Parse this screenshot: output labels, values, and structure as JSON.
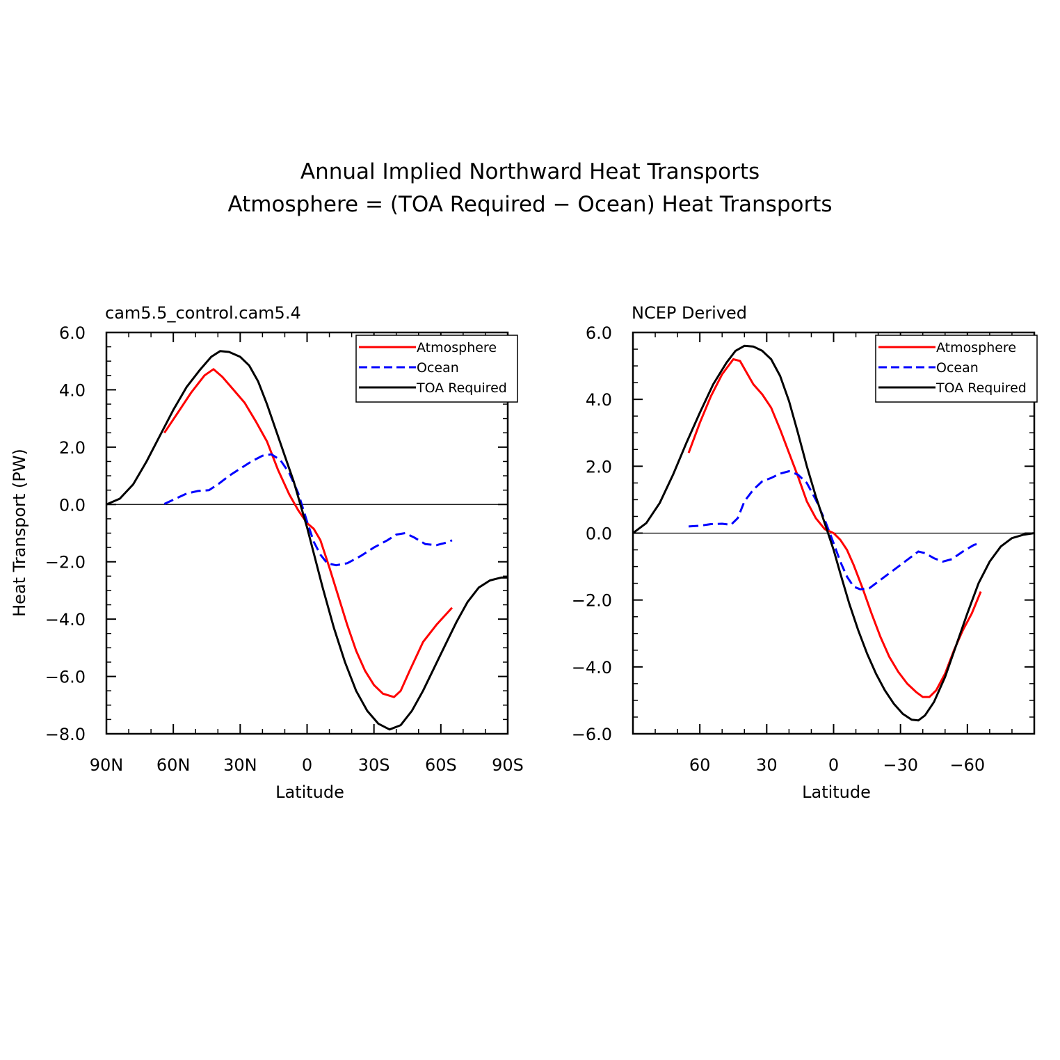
{
  "figure": {
    "title_line1": "Annual Implied Northward Heat Transports",
    "title_line2": "Atmosphere = (TOA Required − Ocean) Heat Transports"
  },
  "chart_data": [
    {
      "type": "line",
      "title": "cam5.5_control.cam5.4",
      "xlabel": "Latitude",
      "ylabel": "Heat Transport (PW)",
      "xlim": [
        90,
        -90
      ],
      "ylim": [
        -8,
        6
      ],
      "x_ticks": [
        90,
        60,
        30,
        0,
        -30,
        -60,
        -90
      ],
      "x_tick_labels": [
        "90N",
        "60N",
        "30N",
        "0",
        "30S",
        "60S",
        "90S"
      ],
      "y_ticks": [
        6,
        4,
        2,
        0,
        -2,
        -4,
        -6,
        -8
      ],
      "y_tick_labels": [
        "6.0",
        "4.0",
        "2.0",
        "0.0",
        "−2.0",
        "−4.0",
        "−6.0",
        "−8.0"
      ],
      "zero_line": true,
      "legend_position": "top-right",
      "series": [
        {
          "name": "Atmosphere",
          "color": "#ff0000",
          "dash": "solid",
          "points": [
            [
              64,
              2.5
            ],
            [
              58,
              3.2
            ],
            [
              52,
              3.9
            ],
            [
              46,
              4.5
            ],
            [
              42,
              4.72
            ],
            [
              38,
              4.45
            ],
            [
              33,
              4.0
            ],
            [
              28,
              3.55
            ],
            [
              23,
              2.9
            ],
            [
              18,
              2.2
            ],
            [
              13,
              1.2
            ],
            [
              8,
              0.35
            ],
            [
              4,
              -0.2
            ],
            [
              0,
              -0.65
            ],
            [
              -3,
              -0.85
            ],
            [
              -6,
              -1.25
            ],
            [
              -10,
              -2.2
            ],
            [
              -14,
              -3.2
            ],
            [
              -18,
              -4.2
            ],
            [
              -22,
              -5.1
            ],
            [
              -26,
              -5.8
            ],
            [
              -30,
              -6.3
            ],
            [
              -34,
              -6.6
            ],
            [
              -39,
              -6.72
            ],
            [
              -42,
              -6.5
            ],
            [
              -46,
              -5.8
            ],
            [
              -52,
              -4.8
            ],
            [
              -58,
              -4.2
            ],
            [
              -65,
              -3.6
            ]
          ]
        },
        {
          "name": "Ocean",
          "color": "#0000ff",
          "dash": "dashed",
          "points": [
            [
              64,
              0.02
            ],
            [
              59,
              0.2
            ],
            [
              54,
              0.38
            ],
            [
              49,
              0.47
            ],
            [
              44,
              0.5
            ],
            [
              40,
              0.7
            ],
            [
              35,
              1.0
            ],
            [
              30,
              1.25
            ],
            [
              25,
              1.5
            ],
            [
              20,
              1.7
            ],
            [
              16,
              1.75
            ],
            [
              12,
              1.55
            ],
            [
              8,
              1.1
            ],
            [
              4,
              0.4
            ],
            [
              0,
              -0.6
            ],
            [
              -3,
              -1.3
            ],
            [
              -6,
              -1.75
            ],
            [
              -9,
              -2.05
            ],
            [
              -13,
              -2.12
            ],
            [
              -18,
              -2.05
            ],
            [
              -24,
              -1.8
            ],
            [
              -30,
              -1.5
            ],
            [
              -36,
              -1.25
            ],
            [
              -40,
              -1.05
            ],
            [
              -44,
              -1.0
            ],
            [
              -48,
              -1.15
            ],
            [
              -53,
              -1.38
            ],
            [
              -58,
              -1.42
            ],
            [
              -63,
              -1.32
            ],
            [
              -65,
              -1.25
            ]
          ]
        },
        {
          "name": "TOA Required",
          "color": "#000000",
          "dash": "solid",
          "points": [
            [
              90,
              0.0
            ],
            [
              84,
              0.2
            ],
            [
              78,
              0.7
            ],
            [
              72,
              1.5
            ],
            [
              66,
              2.4
            ],
            [
              60,
              3.3
            ],
            [
              54,
              4.1
            ],
            [
              48,
              4.7
            ],
            [
              43,
              5.15
            ],
            [
              39,
              5.35
            ],
            [
              35,
              5.32
            ],
            [
              30,
              5.15
            ],
            [
              26,
              4.85
            ],
            [
              22,
              4.3
            ],
            [
              18,
              3.5
            ],
            [
              14,
              2.6
            ],
            [
              10,
              1.7
            ],
            [
              6,
              0.8
            ],
            [
              3,
              0.0
            ],
            [
              0,
              -0.8
            ],
            [
              -3,
              -1.7
            ],
            [
              -7,
              -2.9
            ],
            [
              -12,
              -4.3
            ],
            [
              -17,
              -5.5
            ],
            [
              -22,
              -6.5
            ],
            [
              -27,
              -7.2
            ],
            [
              -32,
              -7.65
            ],
            [
              -37,
              -7.85
            ],
            [
              -42,
              -7.7
            ],
            [
              -47,
              -7.2
            ],
            [
              -52,
              -6.5
            ],
            [
              -57,
              -5.7
            ],
            [
              -62,
              -4.9
            ],
            [
              -67,
              -4.1
            ],
            [
              -72,
              -3.4
            ],
            [
              -77,
              -2.9
            ],
            [
              -82,
              -2.65
            ],
            [
              -87,
              -2.55
            ],
            [
              -90,
              -2.55
            ]
          ]
        }
      ]
    },
    {
      "type": "line",
      "title": "NCEP Derived",
      "xlabel": "Latitude",
      "ylabel": "",
      "xlim": [
        90,
        -90
      ],
      "ylim": [
        -6,
        6
      ],
      "x_ticks": [
        60,
        30,
        0,
        -30,
        -60
      ],
      "x_tick_labels": [
        "60",
        "30",
        "0",
        "−30",
        "−60"
      ],
      "y_ticks": [
        6,
        4,
        2,
        0,
        -2,
        -4,
        -6
      ],
      "y_tick_labels": [
        "6.0",
        "4.0",
        "2.0",
        "0.0",
        "−2.0",
        "−4.0",
        "−6.0"
      ],
      "zero_line": true,
      "legend_position": "top-right",
      "series": [
        {
          "name": "Atmosphere",
          "color": "#ff0000",
          "dash": "solid",
          "points": [
            [
              65,
              2.4
            ],
            [
              60,
              3.3
            ],
            [
              55,
              4.1
            ],
            [
              50,
              4.75
            ],
            [
              45,
              5.2
            ],
            [
              42,
              5.15
            ],
            [
              39,
              4.8
            ],
            [
              36,
              4.45
            ],
            [
              32,
              4.15
            ],
            [
              28,
              3.75
            ],
            [
              24,
              3.1
            ],
            [
              20,
              2.4
            ],
            [
              16,
              1.7
            ],
            [
              12,
              0.95
            ],
            [
              8,
              0.45
            ],
            [
              4,
              0.12
            ],
            [
              0,
              0.0
            ],
            [
              -3,
              -0.2
            ],
            [
              -6,
              -0.5
            ],
            [
              -9,
              -0.95
            ],
            [
              -13,
              -1.65
            ],
            [
              -17,
              -2.4
            ],
            [
              -21,
              -3.1
            ],
            [
              -25,
              -3.7
            ],
            [
              -29,
              -4.15
            ],
            [
              -33,
              -4.5
            ],
            [
              -37,
              -4.75
            ],
            [
              -40,
              -4.9
            ],
            [
              -43,
              -4.9
            ],
            [
              -46,
              -4.7
            ],
            [
              -50,
              -4.2
            ],
            [
              -54,
              -3.5
            ],
            [
              -58,
              -2.9
            ],
            [
              -62,
              -2.4
            ],
            [
              -66,
              -1.75
            ]
          ]
        },
        {
          "name": "Ocean",
          "color": "#0000ff",
          "dash": "dashed",
          "points": [
            [
              65,
              0.2
            ],
            [
              60,
              0.22
            ],
            [
              55,
              0.27
            ],
            [
              50,
              0.28
            ],
            [
              46,
              0.25
            ],
            [
              43,
              0.45
            ],
            [
              40,
              0.95
            ],
            [
              36,
              1.3
            ],
            [
              32,
              1.55
            ],
            [
              28,
              1.65
            ],
            [
              24,
              1.78
            ],
            [
              20,
              1.85
            ],
            [
              16,
              1.75
            ],
            [
              12,
              1.5
            ],
            [
              8,
              1.0
            ],
            [
              4,
              0.4
            ],
            [
              0,
              -0.3
            ],
            [
              -3,
              -0.85
            ],
            [
              -6,
              -1.3
            ],
            [
              -9,
              -1.6
            ],
            [
              -12,
              -1.68
            ],
            [
              -16,
              -1.65
            ],
            [
              -20,
              -1.45
            ],
            [
              -25,
              -1.2
            ],
            [
              -30,
              -0.95
            ],
            [
              -35,
              -0.7
            ],
            [
              -38,
              -0.55
            ],
            [
              -41,
              -0.6
            ],
            [
              -45,
              -0.75
            ],
            [
              -49,
              -0.85
            ],
            [
              -53,
              -0.78
            ],
            [
              -58,
              -0.55
            ],
            [
              -63,
              -0.35
            ],
            [
              -66,
              -0.3
            ]
          ]
        },
        {
          "name": "TOA Required",
          "color": "#000000",
          "dash": "solid",
          "points": [
            [
              90,
              0.0
            ],
            [
              84,
              0.3
            ],
            [
              78,
              0.9
            ],
            [
              72,
              1.75
            ],
            [
              66,
              2.7
            ],
            [
              60,
              3.6
            ],
            [
              54,
              4.45
            ],
            [
              48,
              5.1
            ],
            [
              44,
              5.45
            ],
            [
              40,
              5.6
            ],
            [
              36,
              5.58
            ],
            [
              32,
              5.45
            ],
            [
              28,
              5.2
            ],
            [
              24,
              4.7
            ],
            [
              20,
              3.95
            ],
            [
              16,
              3.0
            ],
            [
              12,
              2.0
            ],
            [
              8,
              1.1
            ],
            [
              4,
              0.3
            ],
            [
              0,
              -0.5
            ],
            [
              -3,
              -1.2
            ],
            [
              -7,
              -2.1
            ],
            [
              -11,
              -2.9
            ],
            [
              -15,
              -3.6
            ],
            [
              -19,
              -4.2
            ],
            [
              -23,
              -4.7
            ],
            [
              -27,
              -5.1
            ],
            [
              -31,
              -5.4
            ],
            [
              -35,
              -5.58
            ],
            [
              -38,
              -5.6
            ],
            [
              -41,
              -5.45
            ],
            [
              -45,
              -5.05
            ],
            [
              -50,
              -4.3
            ],
            [
              -55,
              -3.35
            ],
            [
              -60,
              -2.4
            ],
            [
              -65,
              -1.5
            ],
            [
              -70,
              -0.85
            ],
            [
              -75,
              -0.4
            ],
            [
              -80,
              -0.15
            ],
            [
              -85,
              -0.05
            ],
            [
              -90,
              0.0
            ]
          ]
        }
      ]
    }
  ]
}
